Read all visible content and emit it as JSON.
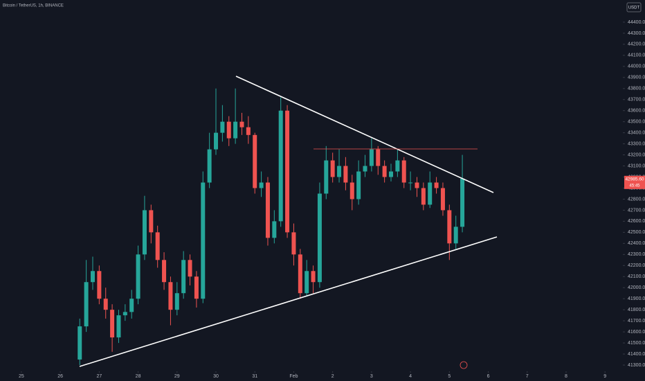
{
  "chart_data": {
    "type": "candlestick",
    "title": "Bitcoin / TetherUS, 1h, BINANCE",
    "currency": "USDT",
    "last_price_label": "42985.60",
    "countdown": "45:45",
    "up_color": "#26a69a",
    "down_color": "#ef5350",
    "x": [
      1.5,
      1.6667,
      1.8333,
      2,
      2.1667,
      2.3333,
      2.5,
      2.6667,
      2.8333,
      3,
      3.1667,
      3.3333,
      3.5,
      3.6667,
      3.8333,
      4,
      4.1667,
      4.3333,
      4.5,
      4.6667,
      4.8333,
      5,
      5.1667,
      5.3333,
      5.5,
      5.6667,
      5.8333,
      6,
      6.1667,
      6.3333,
      6.5,
      6.6667,
      6.8333,
      7,
      7.1667,
      7.3333,
      7.5,
      7.6667,
      7.8333,
      8,
      8.1667,
      8.3333,
      8.5,
      8.6667,
      8.8333,
      9,
      9.1667,
      9.3333,
      9.5,
      9.6667,
      9.8333,
      10,
      10.1667,
      10.3333,
      10.5,
      10.6667,
      10.8333,
      11,
      11.1667,
      11.3333
    ],
    "open": [
      41350,
      41650,
      42050,
      42150,
      41900,
      41800,
      41550,
      41750,
      41780,
      41900,
      42300,
      42700,
      42500,
      42250,
      42050,
      41800,
      41950,
      42250,
      42100,
      41900,
      42950,
      43250,
      43400,
      43500,
      43350,
      43500,
      43450,
      43380,
      42900,
      42950,
      42450,
      42600,
      43600,
      42500,
      42300,
      41950,
      42150,
      42050,
      42850,
      43150,
      43000,
      43100,
      42950,
      42800,
      43050,
      43100,
      43250,
      43100,
      43000,
      43050,
      43150,
      42950,
      42950,
      42900,
      42750,
      42950,
      42900,
      42700,
      42400,
      42550
    ],
    "high": [
      41720,
      42250,
      42280,
      42200,
      42000,
      41850,
      41800,
      41850,
      41980,
      42380,
      42830,
      42750,
      42560,
      42320,
      42100,
      42050,
      42330,
      42300,
      42150,
      43050,
      43400,
      43800,
      43650,
      43550,
      43800,
      43580,
      43550,
      43400,
      43050,
      43000,
      42700,
      43720,
      43650,
      42580,
      42350,
      42250,
      42200,
      42950,
      43280,
      43220,
      43250,
      43180,
      43020,
      43150,
      43200,
      43350,
      43280,
      43150,
      43120,
      43250,
      43180,
      43050,
      43000,
      42950,
      43050,
      43000,
      42950,
      42750,
      42650,
      43200
    ],
    "low": [
      41300,
      41600,
      41980,
      41850,
      41720,
      41420,
      41500,
      41700,
      41720,
      41850,
      42250,
      42400,
      42180,
      41980,
      41660,
      41750,
      41900,
      42020,
      41820,
      41860,
      42900,
      43200,
      43320,
      43280,
      43300,
      43380,
      43300,
      42850,
      42820,
      42380,
      42400,
      42550,
      42450,
      42200,
      41900,
      41920,
      41950,
      42000,
      42800,
      42950,
      42950,
      42880,
      42700,
      42750,
      43000,
      43050,
      43020,
      42950,
      42960,
      43000,
      42900,
      42880,
      42820,
      42700,
      42720,
      42850,
      42650,
      42250,
      42350,
      42500
    ],
    "close": [
      41650,
      42050,
      42150,
      41900,
      41800,
      41550,
      41750,
      41780,
      41900,
      42300,
      42700,
      42500,
      42250,
      42050,
      41800,
      41950,
      42250,
      42100,
      41900,
      42950,
      43250,
      43400,
      43500,
      43350,
      43500,
      43450,
      43380,
      42900,
      42950,
      42450,
      42600,
      43600,
      42500,
      42300,
      41950,
      42150,
      42050,
      42850,
      43150,
      43000,
      43100,
      42950,
      42800,
      43050,
      43100,
      43250,
      43100,
      43000,
      43050,
      43150,
      42950,
      42950,
      42900,
      42750,
      42950,
      42900,
      42700,
      42400,
      42550,
      42985.6
    ],
    "xlim": [
      -0.55,
      15.37
    ],
    "xticks": [
      {
        "value": 0,
        "label": "25"
      },
      {
        "value": 1,
        "label": "26"
      },
      {
        "value": 2,
        "label": "27"
      },
      {
        "value": 3,
        "label": "28"
      },
      {
        "value": 4,
        "label": "29"
      },
      {
        "value": 5,
        "label": "30"
      },
      {
        "value": 6,
        "label": "31"
      },
      {
        "value": 7,
        "label": "Feb"
      },
      {
        "value": 8,
        "label": "2"
      },
      {
        "value": 9,
        "label": "3"
      },
      {
        "value": 10,
        "label": "4"
      },
      {
        "value": 11,
        "label": "5"
      },
      {
        "value": 12,
        "label": "6"
      },
      {
        "value": 13,
        "label": "7"
      },
      {
        "value": 14,
        "label": "8"
      },
      {
        "value": 15,
        "label": "9"
      }
    ],
    "ylim": [
      41250,
      44600
    ],
    "yticks": [
      {
        "value": 41300,
        "label": "41300.00"
      },
      {
        "value": 41400,
        "label": "41400.00"
      },
      {
        "value": 41500,
        "label": "41500.00"
      },
      {
        "value": 41600,
        "label": "41600.00"
      },
      {
        "value": 41700,
        "label": "41700.00"
      },
      {
        "value": 41800,
        "label": "41800.00"
      },
      {
        "value": 41900,
        "label": "41900.00"
      },
      {
        "value": 42000,
        "label": "42000.00"
      },
      {
        "value": 42100,
        "label": "42100.00"
      },
      {
        "value": 42200,
        "label": "42200.00"
      },
      {
        "value": 42300,
        "label": "42300.00"
      },
      {
        "value": 42400,
        "label": "42400.00"
      },
      {
        "value": 42500,
        "label": "42500.00"
      },
      {
        "value": 42600,
        "label": "42600.00"
      },
      {
        "value": 42700,
        "label": "42700.00"
      },
      {
        "value": 42800,
        "label": "42800.00"
      },
      {
        "value": 42900,
        "label": "42900.00"
      },
      {
        "value": 43000,
        "label": "43000.00"
      },
      {
        "value": 43100,
        "label": "43100.00"
      },
      {
        "value": 43200,
        "label": "43200.00"
      },
      {
        "value": 43300,
        "label": "43300.00"
      },
      {
        "value": 43400,
        "label": "43400.00"
      },
      {
        "value": 43500,
        "label": "43500.00"
      },
      {
        "value": 43600,
        "label": "43600.00"
      },
      {
        "value": 43700,
        "label": "43700.00"
      },
      {
        "value": 43800,
        "label": "43800.00"
      },
      {
        "value": 43900,
        "label": "43900.00"
      },
      {
        "value": 44000,
        "label": "44000.00"
      },
      {
        "value": 44100,
        "label": "44100.00"
      },
      {
        "value": 44200,
        "label": "44200.00"
      },
      {
        "value": 44300,
        "label": "44300.00"
      },
      {
        "value": 44400,
        "label": "44400.00"
      }
    ]
  }
}
